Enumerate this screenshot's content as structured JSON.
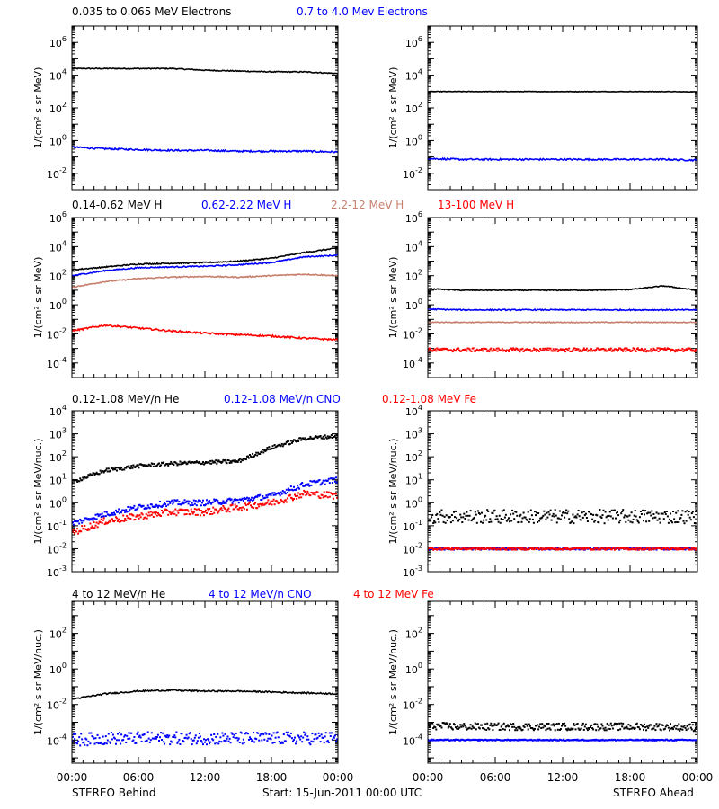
{
  "colors": {
    "black": "#000000",
    "blue": "#0000ff",
    "tan": "#c8806e",
    "red": "#ff0000"
  },
  "ylabels": {
    "flux_mev": "1/(cm² s sr MeV)",
    "flux_nuc": "1/(cm² s sr MeV/nuc.)"
  },
  "footer": {
    "left": "STEREO Behind",
    "center": "Start: 15-Jun-2011 00:00 UTC",
    "right": "STEREO Ahead"
  },
  "chart_data": [
    {
      "type": "line",
      "row": 1,
      "legend": [
        {
          "label": "0.035 to 0.065 MeV Electrons",
          "color": "black"
        },
        {
          "label": "0.7 to 4.0 Mev Electrons",
          "color": "blue"
        }
      ],
      "ylabel": "flux_mev",
      "y_scale": "log",
      "ylim_exp": [
        -3,
        7
      ],
      "ytick_exponents": [
        -2,
        0,
        2,
        4,
        6
      ],
      "panels": [
        {
          "spacecraft": "STEREO Behind",
          "x_hours": [
            0,
            3,
            6,
            9,
            12,
            15,
            18,
            21,
            24
          ],
          "series": [
            {
              "color": "black",
              "style": "line",
              "noise": 0.03,
              "log10": [
                4.4,
                4.4,
                4.4,
                4.4,
                4.3,
                4.25,
                4.2,
                4.2,
                4.1
              ]
            },
            {
              "color": "blue",
              "style": "line",
              "noise": 0.05,
              "log10": [
                -0.4,
                -0.5,
                -0.55,
                -0.6,
                -0.6,
                -0.65,
                -0.65,
                -0.65,
                -0.7
              ]
            }
          ]
        },
        {
          "spacecraft": "STEREO Ahead",
          "x_hours": [
            0,
            3,
            6,
            9,
            12,
            15,
            18,
            21,
            24
          ],
          "series": [
            {
              "color": "black",
              "style": "line",
              "noise": 0.015,
              "log10": [
                3.0,
                3.0,
                3.0,
                3.0,
                3.0,
                3.0,
                3.0,
                3.0,
                2.98
              ]
            },
            {
              "color": "blue",
              "style": "line",
              "noise": 0.05,
              "log10": [
                -1.1,
                -1.15,
                -1.15,
                -1.15,
                -1.15,
                -1.15,
                -1.15,
                -1.15,
                -1.2
              ]
            }
          ]
        }
      ]
    },
    {
      "type": "line",
      "row": 2,
      "legend": [
        {
          "label": "0.14-0.62 MeV H",
          "color": "black"
        },
        {
          "label": "0.62-2.22 MeV H",
          "color": "blue"
        },
        {
          "label": "2.2-12 MeV H",
          "color": "tan"
        },
        {
          "label": "13-100 MeV H",
          "color": "red"
        }
      ],
      "ylabel": "flux_mev",
      "y_scale": "log",
      "ylim_exp": [
        -5,
        6
      ],
      "ytick_exponents": [
        -4,
        -2,
        0,
        2,
        4,
        6
      ],
      "panels": [
        {
          "spacecraft": "STEREO Behind",
          "x_hours": [
            0,
            3,
            6,
            9,
            12,
            15,
            18,
            21,
            24
          ],
          "series": [
            {
              "color": "black",
              "style": "line",
              "noise": 0.04,
              "log10": [
                2.4,
                2.6,
                2.8,
                2.85,
                2.9,
                3.0,
                3.2,
                3.6,
                3.9
              ]
            },
            {
              "color": "blue",
              "style": "line",
              "noise": 0.04,
              "log10": [
                2.0,
                2.35,
                2.55,
                2.6,
                2.65,
                2.75,
                2.9,
                3.3,
                3.4
              ]
            },
            {
              "color": "tan",
              "style": "line",
              "noise": 0.04,
              "log10": [
                1.2,
                1.6,
                1.8,
                1.9,
                1.95,
                1.9,
                2.0,
                2.1,
                2.0
              ]
            },
            {
              "color": "red",
              "style": "line",
              "noise": 0.06,
              "log10": [
                -1.8,
                -1.4,
                -1.6,
                -1.8,
                -1.95,
                -2.05,
                -2.15,
                -2.3,
                -2.4
              ]
            }
          ]
        },
        {
          "spacecraft": "STEREO Ahead",
          "x_hours": [
            0,
            3,
            6,
            9,
            12,
            15,
            18,
            21,
            24
          ],
          "series": [
            {
              "color": "black",
              "style": "line",
              "noise": 0.03,
              "log10": [
                1.1,
                1.0,
                1.0,
                1.0,
                1.0,
                1.0,
                1.05,
                1.3,
                1.0
              ]
            },
            {
              "color": "blue",
              "style": "line",
              "noise": 0.04,
              "log10": [
                -0.3,
                -0.35,
                -0.35,
                -0.35,
                -0.35,
                -0.35,
                -0.35,
                -0.35,
                -0.35
              ]
            },
            {
              "color": "tan",
              "style": "line",
              "noise": 0.03,
              "log10": [
                -1.2,
                -1.2,
                -1.2,
                -1.2,
                -1.2,
                -1.2,
                -1.2,
                -1.2,
                -1.2
              ]
            },
            {
              "color": "red",
              "style": "dots",
              "noise": 0.12,
              "log10": [
                -3.1,
                -3.1,
                -3.1,
                -3.1,
                -3.1,
                -3.1,
                -3.1,
                -3.1,
                -3.1
              ]
            }
          ]
        }
      ]
    },
    {
      "type": "scatter",
      "row": 3,
      "legend": [
        {
          "label": "0.12-1.08 MeV/n He",
          "color": "black"
        },
        {
          "label": "0.12-1.08 MeV/n CNO",
          "color": "blue"
        },
        {
          "label": "0.12-1.08 MeV Fe",
          "color": "red"
        }
      ],
      "ylabel": "flux_nuc",
      "y_scale": "log",
      "ylim_exp": [
        -3,
        4
      ],
      "ytick_exponents": [
        -3,
        -2,
        -1,
        0,
        1,
        2,
        3,
        4
      ],
      "panels": [
        {
          "spacecraft": "STEREO Behind",
          "x_hours": [
            0,
            3,
            6,
            9,
            12,
            15,
            18,
            21,
            24
          ],
          "series": [
            {
              "color": "black",
              "style": "dots",
              "noise": 0.08,
              "log10": [
                0.9,
                1.4,
                1.6,
                1.7,
                1.75,
                1.8,
                2.4,
                2.8,
                2.9
              ]
            },
            {
              "color": "blue",
              "style": "dots",
              "noise": 0.12,
              "log10": [
                -0.9,
                -0.5,
                -0.2,
                0.0,
                0.0,
                0.1,
                0.3,
                0.8,
                1.0
              ]
            },
            {
              "color": "red",
              "style": "dots",
              "noise": 0.15,
              "log10": [
                -1.3,
                -0.8,
                -0.6,
                -0.4,
                -0.4,
                -0.2,
                0.0,
                0.4,
                0.3
              ]
            }
          ]
        },
        {
          "spacecraft": "STEREO Ahead",
          "x_hours": [
            0,
            3,
            6,
            9,
            12,
            15,
            18,
            21,
            24
          ],
          "series": [
            {
              "color": "black",
              "style": "dots",
              "noise": 0.3,
              "log10": [
                -0.6,
                -0.6,
                -0.6,
                -0.6,
                -0.6,
                -0.6,
                -0.6,
                -0.6,
                -0.6
              ]
            },
            {
              "color": "blue",
              "style": "dots",
              "noise": 0.05,
              "log10": [
                -2.0,
                -2.0,
                -2.0,
                -2.0,
                -2.0,
                -2.0,
                -2.0,
                -2.0,
                -2.0
              ]
            },
            {
              "color": "red",
              "style": "dots",
              "noise": 0.05,
              "log10": [
                -2.0,
                -2.0,
                -2.0,
                -2.0,
                -2.0,
                -2.0,
                -2.0,
                -2.0,
                -2.0
              ]
            }
          ]
        }
      ]
    },
    {
      "type": "scatter",
      "row": 4,
      "legend": [
        {
          "label": "4 to 12 MeV/n He",
          "color": "black"
        },
        {
          "label": "4 to 12 MeV/n CNO",
          "color": "blue"
        },
        {
          "label": "4 to 12 MeV Fe",
          "color": "red"
        }
      ],
      "ylabel": "flux_nuc",
      "y_scale": "log",
      "ylim_exp": [
        -5.3,
        3.8
      ],
      "ytick_exponents": [
        -4,
        -2,
        0,
        2
      ],
      "panels": [
        {
          "spacecraft": "STEREO Behind",
          "x_hours": [
            0,
            3,
            6,
            9,
            12,
            15,
            18,
            21,
            24
          ],
          "series": [
            {
              "color": "black",
              "style": "line",
              "noise": 0.04,
              "log10": [
                -1.7,
                -1.4,
                -1.25,
                -1.2,
                -1.25,
                -1.25,
                -1.3,
                -1.35,
                -1.4
              ]
            },
            {
              "color": "blue",
              "style": "dots",
              "noise": 0.35,
              "log10": [
                -4.0,
                -3.9,
                -3.9,
                -3.9,
                -3.9,
                -3.9,
                -3.9,
                -3.9,
                -3.9
              ]
            }
          ]
        },
        {
          "spacecraft": "STEREO Ahead",
          "x_hours": [
            0,
            3,
            6,
            9,
            12,
            15,
            18,
            21,
            24
          ],
          "series": [
            {
              "color": "black",
              "style": "dots",
              "noise": 0.2,
              "log10": [
                -3.2,
                -3.25,
                -3.25,
                -3.25,
                -3.25,
                -3.25,
                -3.25,
                -3.25,
                -3.3
              ]
            },
            {
              "color": "blue",
              "style": "dots",
              "noise": 0.03,
              "log10": [
                -4.0,
                -4.0,
                -4.0,
                -4.0,
                -4.0,
                -4.0,
                -4.0,
                -4.0,
                -4.0
              ]
            }
          ]
        }
      ]
    }
  ],
  "x_axis": {
    "range_hours": [
      0,
      24
    ],
    "tick_hours": [
      0,
      6,
      12,
      18,
      24
    ],
    "tick_labels": [
      "00:00",
      "06:00",
      "12:00",
      "18:00",
      "00:00"
    ]
  }
}
